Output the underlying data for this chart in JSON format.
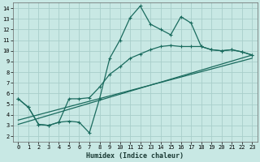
{
  "xlabel": "Humidex (Indice chaleur)",
  "bg_color": "#c8e8e4",
  "grid_color": "#a8ceca",
  "line_color": "#1a6b5e",
  "xlim": [
    -0.5,
    23.5
  ],
  "ylim": [
    1.5,
    14.5
  ],
  "xticks": [
    0,
    1,
    2,
    3,
    4,
    5,
    6,
    7,
    8,
    9,
    10,
    11,
    12,
    13,
    14,
    15,
    16,
    17,
    18,
    19,
    20,
    21,
    22,
    23
  ],
  "yticks": [
    2,
    3,
    4,
    5,
    6,
    7,
    8,
    9,
    10,
    11,
    12,
    13,
    14
  ],
  "curve1_x": [
    0,
    1,
    2,
    3,
    4,
    5,
    6,
    7,
    8,
    9,
    10,
    11,
    12,
    13,
    14,
    15,
    16,
    17,
    18,
    19,
    20,
    21,
    22,
    23
  ],
  "curve1_y": [
    5.5,
    4.7,
    3.1,
    3.0,
    3.3,
    3.4,
    3.3,
    2.3,
    5.5,
    9.3,
    11.0,
    13.1,
    14.2,
    12.5,
    12.0,
    11.5,
    13.2,
    12.6,
    10.4,
    10.1,
    10.0,
    10.1,
    9.9,
    9.6
  ],
  "curve2_x": [
    0,
    1,
    2,
    3,
    4,
    5,
    6,
    7,
    8,
    9,
    10,
    11,
    12,
    13,
    14,
    15,
    16,
    17,
    18,
    19,
    20,
    21,
    22,
    23
  ],
  "curve2_y": [
    5.5,
    4.7,
    3.1,
    3.0,
    3.3,
    5.5,
    5.5,
    5.6,
    6.6,
    7.8,
    8.5,
    9.3,
    9.7,
    10.1,
    10.4,
    10.5,
    10.4,
    10.4,
    10.4,
    10.1,
    10.0,
    10.1,
    9.9,
    9.6
  ],
  "line1_y0": 3.1,
  "line1_y1": 9.6,
  "line2_y0": 3.5,
  "line2_y1": 9.3
}
